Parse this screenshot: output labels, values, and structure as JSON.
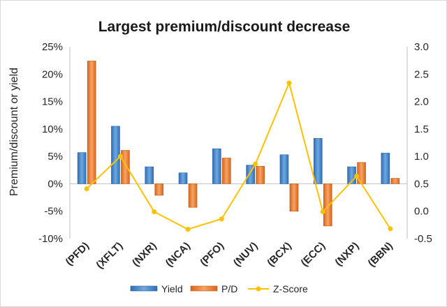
{
  "chart_data": {
    "type": "bar",
    "title": "Largest premium/discount decrease",
    "ylabel": "Premium/discount or yield",
    "xlabel": "",
    "categories": [
      "(PFD)",
      "(XFLT)",
      "(NXR)",
      "(NCA)",
      "(PFO)",
      "(NUV)",
      "(BCX)",
      "(ECC)",
      "(NXP)",
      "(BBN)"
    ],
    "ylim": [
      -10,
      25
    ],
    "y_ticks": [
      "25%",
      "20%",
      "15%",
      "10%",
      "5%",
      "0%",
      "-5%",
      "-10%"
    ],
    "y2lim": [
      -0.5,
      3.0
    ],
    "y2_ticks": [
      "3.0",
      "2.5",
      "2.0",
      "1.5",
      "1.0",
      "0.5",
      "0.0",
      "-0.5"
    ],
    "grid": false,
    "legend_position": "bottom",
    "series": [
      {
        "name": "Yield",
        "type": "bar",
        "axis": "left",
        "color": "#4a86c8",
        "values": [
          5.7,
          10.5,
          3.1,
          2.0,
          6.4,
          3.4,
          5.3,
          8.3,
          3.1,
          5.6
        ]
      },
      {
        "name": "P/D",
        "type": "bar",
        "axis": "left",
        "color": "#ed7d31",
        "values": [
          22.4,
          6.1,
          -2.1,
          -4.3,
          4.7,
          3.2,
          -5.0,
          -7.7,
          3.9,
          1.0
        ]
      },
      {
        "name": "Z-Score",
        "type": "line",
        "axis": "right",
        "color": "#ffc000",
        "values": [
          0.41,
          1.0,
          -0.01,
          -0.33,
          -0.14,
          0.86,
          2.34,
          -0.01,
          0.64,
          -0.32
        ]
      }
    ]
  }
}
